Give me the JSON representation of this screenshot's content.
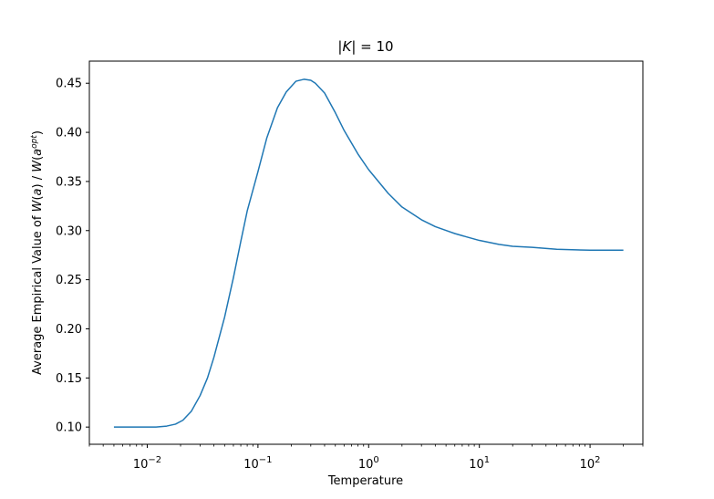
{
  "chart_data": {
    "type": "line",
    "title": "|K| = 10",
    "xlabel": "Temperature",
    "ylabel": "Average Empirical Value of W(a) / W(a^opt)",
    "xscale": "log",
    "xlim": [
      0.003,
      300
    ],
    "ylim": [
      0.0825,
      0.4725
    ],
    "grid": false,
    "x_ticks": [
      {
        "value": 0.01,
        "base": "10",
        "exp": "−2"
      },
      {
        "value": 0.1,
        "base": "10",
        "exp": "−1"
      },
      {
        "value": 1,
        "base": "10",
        "exp": "0"
      },
      {
        "value": 10,
        "base": "10",
        "exp": "1"
      },
      {
        "value": 100,
        "base": "10",
        "exp": "2"
      }
    ],
    "y_ticks": [
      "0.10",
      "0.15",
      "0.20",
      "0.25",
      "0.30",
      "0.35",
      "0.40",
      "0.45"
    ],
    "series": [
      {
        "color": "#1f77b4",
        "x": [
          0.005,
          0.008,
          0.012,
          0.015,
          0.018,
          0.021,
          0.025,
          0.03,
          0.035,
          0.04,
          0.05,
          0.06,
          0.07,
          0.08,
          0.1,
          0.12,
          0.15,
          0.18,
          0.22,
          0.26,
          0.3,
          0.33,
          0.4,
          0.5,
          0.6,
          0.8,
          1.0,
          1.5,
          2.0,
          3.0,
          4.0,
          6.0,
          8.0,
          10,
          15,
          20,
          30,
          50,
          100,
          200
        ],
        "y": [
          0.1,
          0.1,
          0.1,
          0.101,
          0.103,
          0.107,
          0.116,
          0.132,
          0.15,
          0.171,
          0.212,
          0.252,
          0.289,
          0.32,
          0.36,
          0.394,
          0.425,
          0.441,
          0.452,
          0.454,
          0.453,
          0.45,
          0.44,
          0.42,
          0.402,
          0.378,
          0.362,
          0.338,
          0.324,
          0.311,
          0.304,
          0.297,
          0.293,
          0.29,
          0.286,
          0.284,
          0.283,
          0.281,
          0.28,
          0.28
        ]
      }
    ]
  }
}
